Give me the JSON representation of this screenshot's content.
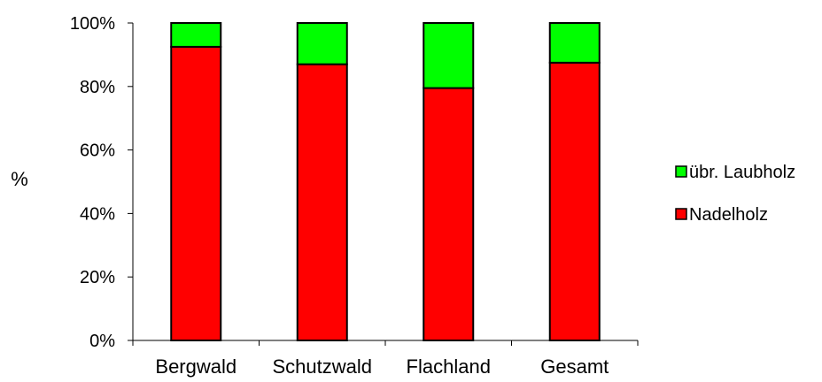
{
  "chart_data": {
    "type": "bar",
    "stacked": true,
    "percent": true,
    "categories": [
      "Bergwald",
      "Schutzwald",
      "Flachland",
      "Gesamt"
    ],
    "series": [
      {
        "name": "Nadelholz",
        "values": [
          92.5,
          87,
          79.5,
          87.5
        ],
        "color": "#ff0000"
      },
      {
        "name": "übr. Laubholz",
        "values": [
          7.5,
          13,
          20.5,
          12.5
        ],
        "color": "#00ff00"
      }
    ],
    "ylabel": "%",
    "ylim": [
      0,
      100
    ],
    "yticks": [
      "0%",
      "20%",
      "40%",
      "60%",
      "80%",
      "100%"
    ],
    "grid": false,
    "legend_position": "right"
  }
}
